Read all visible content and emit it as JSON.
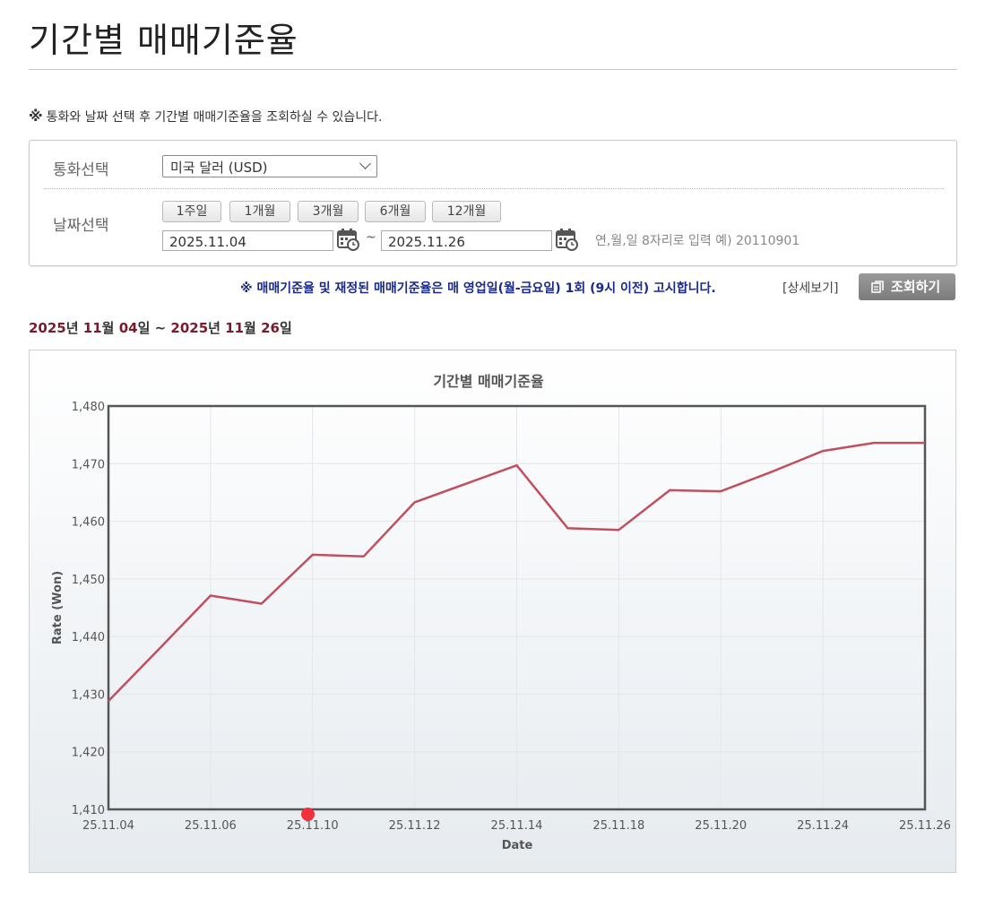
{
  "page": {
    "title": "기간별 매매기준율",
    "notice_mark": "※",
    "notice": "통화와 날짜 선택 후 기간별 매매기준율을 조회하실 수 있습니다."
  },
  "filter": {
    "currency_label": "통화선택",
    "currency_value": "미국 달러 (USD)",
    "date_label": "날짜선택",
    "period_buttons": [
      "1주일",
      "1개월",
      "3개월",
      "6개월",
      "12개월"
    ],
    "start_date": "2025.11.04",
    "end_date": "2025.11.26",
    "tilde": "~",
    "hint": "연,월,일 8자리로 입력 예) 20110901"
  },
  "announcement": "※ 매매기준율 및 재정된 매매기준율은 매 영업일(월-금요일) 1회 (9시 이전) 고시합니다.",
  "detail_link": "[상세보기]",
  "search_button": "조회하기",
  "range": {
    "y1": "2025",
    "u_year1": "년 ",
    "m1": "11",
    "u_month1": "월 ",
    "d1": "04",
    "u_day1": "일",
    "sep": " ~ ",
    "y2": "2025",
    "u_year2": "년 ",
    "m2": "11",
    "u_month2": "월 ",
    "d2": "26",
    "u_day2": "일"
  },
  "chart_data": {
    "type": "line",
    "title": "기간별 매매기준율",
    "xlabel": "Date",
    "ylabel": "Rate (Won)",
    "ylim": [
      1410,
      1480
    ],
    "y_ticks": [
      1410,
      1420,
      1430,
      1440,
      1450,
      1460,
      1470,
      1480
    ],
    "y_tick_labels": [
      "1,410",
      "1,420",
      "1,430",
      "1,440",
      "1,450",
      "1,460",
      "1,470",
      "1,480"
    ],
    "x_tick_labels": [
      "25.11.04",
      "25.11.06",
      "25.11.10",
      "25.11.12",
      "25.11.14",
      "25.11.18",
      "25.11.20",
      "25.11.24",
      "25.11.26"
    ],
    "grid": true,
    "line_color": "#c0505f",
    "series": [
      {
        "x": [
          "25.11.04",
          "25.11.05",
          "25.11.06",
          "25.11.07",
          "25.11.10",
          "25.11.11",
          "25.11.12",
          "25.11.13",
          "25.11.14",
          "25.11.17",
          "25.11.18",
          "25.11.19",
          "25.11.20",
          "25.11.21",
          "25.11.24",
          "25.11.25",
          "25.11.26"
        ],
        "values": [
          1428.8,
          1437.9,
          1447.1,
          1445.7,
          1454.2,
          1453.9,
          1463.3,
          1466.5,
          1469.7,
          1458.8,
          1458.5,
          1465.4,
          1465.2,
          1468.6,
          1472.2,
          1473.6,
          1473.6
        ]
      }
    ]
  },
  "colors": {
    "range_accent": "#7a1a2a",
    "announcement": "#1a2a8a",
    "marker": "#f2303a"
  }
}
